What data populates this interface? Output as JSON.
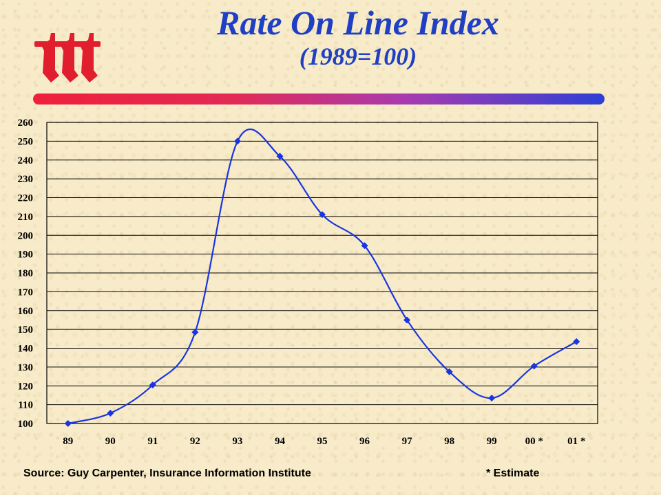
{
  "header": {
    "title": "Rate On Line Index",
    "subtitle": "(1989=100)"
  },
  "footer": {
    "source": "Source: Guy Carpenter, Insurance Information Institute",
    "note": "* Estimate"
  },
  "colors": {
    "title": "#1f3fc4",
    "series": "#1a35e0",
    "logo": "#e01e2e",
    "rule_start": "#f0203a",
    "rule_end": "#2d3fd6"
  },
  "chart_data": {
    "type": "line",
    "title": "Rate On Line Index",
    "subtitle": "(1989=100)",
    "xlabel": "",
    "ylabel": "",
    "categories": [
      "89",
      "90",
      "91",
      "92",
      "93",
      "94",
      "95",
      "96",
      "97",
      "98",
      "99",
      "00 *",
      "01 *"
    ],
    "series": [
      {
        "values": [
          100,
          105.5,
          120.5,
          148.5,
          250,
          242,
          211,
          194.5,
          155,
          127.5,
          113.5,
          130.5,
          143.5
        ]
      }
    ],
    "ylim": [
      100,
      260
    ],
    "yticks": [
      100,
      110,
      120,
      130,
      140,
      150,
      160,
      170,
      180,
      190,
      200,
      210,
      220,
      230,
      240,
      250,
      260
    ],
    "grid": "horizontal",
    "legend": "none",
    "marker": "diamond",
    "smooth": true
  }
}
